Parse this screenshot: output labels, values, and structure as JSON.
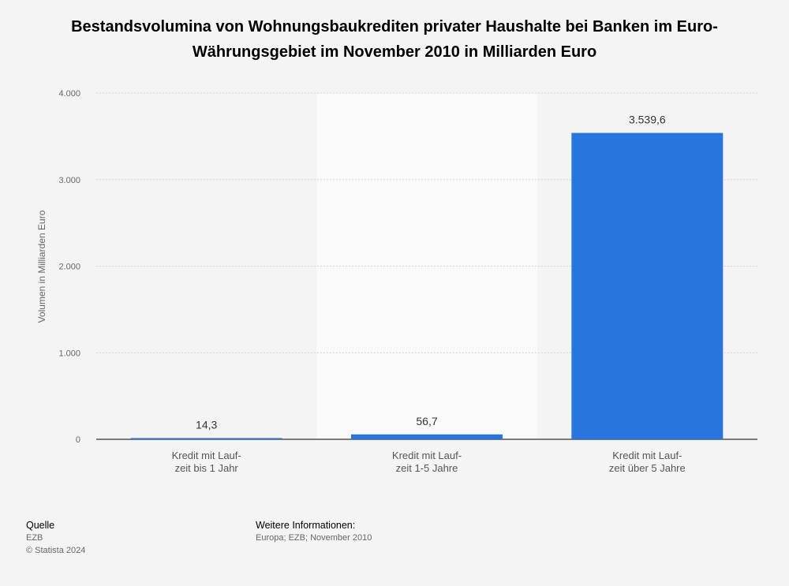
{
  "chart_data": {
    "type": "bar",
    "title": "Bestandsvolumina von Wohnungsbaukrediten privater Haushalte bei Banken im Euro-Währungsgebiet im November 2010 in Milliarden Euro",
    "xlabel": "",
    "ylabel": "Volumen in Milliarden Euro",
    "categories": [
      [
        "Kredit mit Lauf-",
        "zeit bis 1 Jahr"
      ],
      [
        "Kredit mit Lauf-",
        "zeit 1-5 Jahre"
      ],
      [
        "Kredit mit Lauf-",
        "zeit über 5 Jahre"
      ]
    ],
    "values": [
      14.3,
      56.7,
      3539.6
    ],
    "value_labels": [
      "14,3",
      "56,7",
      "3.539,6"
    ],
    "ylim": [
      0,
      4000
    ],
    "yticks": [
      0,
      1000,
      2000,
      3000,
      4000
    ],
    "ytick_labels": [
      "0",
      "1.000",
      "2.000",
      "3.000",
      "4.000"
    ],
    "grid": true,
    "bar_color": "#2876dd",
    "highlight_band_color": "#fafafa"
  },
  "footer": {
    "source_heading": "Quelle",
    "source": "EZB",
    "copyright": "© Statista 2024",
    "info_heading": "Weitere Informationen:",
    "info": "Europa; EZB; November 2010"
  }
}
